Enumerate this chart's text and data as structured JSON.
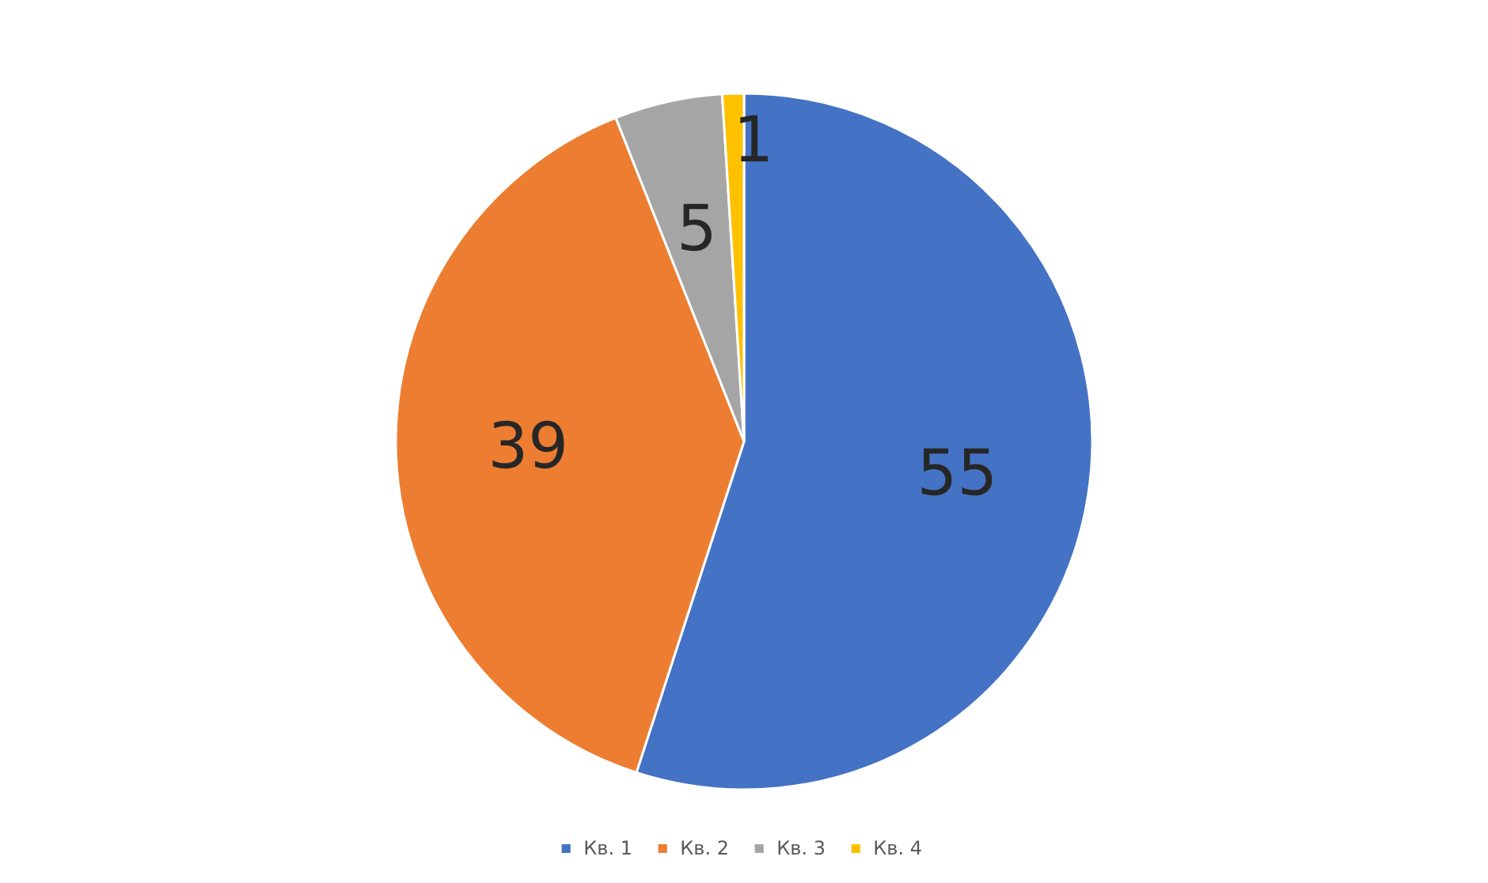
{
  "chart_data": {
    "type": "pie",
    "categories": [
      "Кв. 1",
      "Кв. 2",
      "Кв. 3",
      "Кв. 4"
    ],
    "values": [
      55,
      39,
      5,
      1
    ],
    "colors": [
      "#4472c4",
      "#ed7d31",
      "#a5a5a5",
      "#ffc000"
    ],
    "data_labels": true,
    "legend": "bottom"
  }
}
